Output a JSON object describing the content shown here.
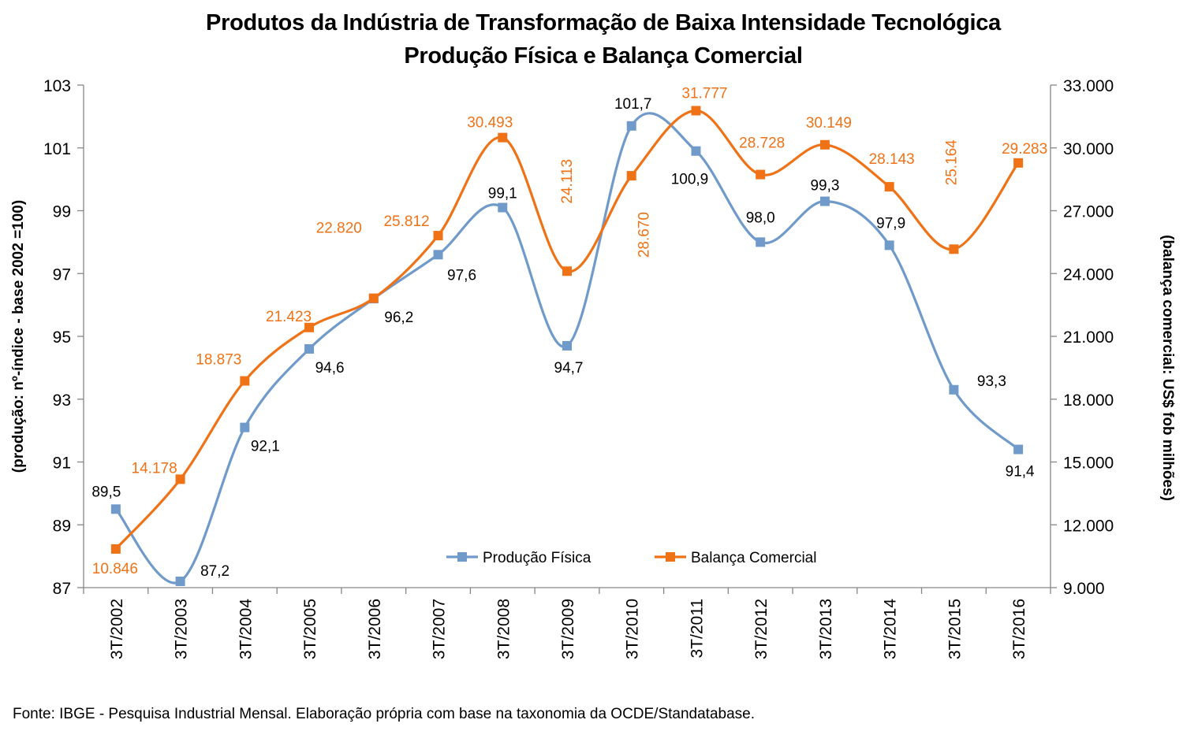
{
  "chart_data": {
    "type": "line",
    "title": "Produtos da Indústria de Transformação de Baixa Intensidade Tecnológica",
    "subtitle": "Produção Física e Balança Comercial",
    "categories": [
      "3T/2002",
      "3T/2003",
      "3T/2004",
      "3T/2005",
      "3T/2006",
      "3T/2007",
      "3T/2008",
      "3T/2009",
      "3T/2010",
      "3T/2011",
      "3T/2012",
      "3T/2013",
      "3T/2014",
      "3T/2015",
      "3T/2016"
    ],
    "ylabel_left": "(produção: nº-índice - base 2002 =100)",
    "ylabel_right": "(balança comercial: US$ fob milhões)",
    "ylim_left": [
      87,
      103
    ],
    "yticks_left": [
      "87",
      "89",
      "91",
      "93",
      "95",
      "97",
      "99",
      "101",
      "103"
    ],
    "ylim_right": [
      9000,
      33000
    ],
    "yticks_right": [
      "9.000",
      "12.000",
      "15.000",
      "18.000",
      "21.000",
      "24.000",
      "27.000",
      "30.000",
      "33.000"
    ],
    "series": [
      {
        "name": "Produção Física",
        "axis": "left",
        "color": "#6F9AC9",
        "values": [
          89.5,
          87.2,
          92.1,
          94.6,
          96.2,
          97.6,
          99.1,
          94.7,
          101.7,
          100.9,
          98.0,
          99.3,
          97.9,
          93.3,
          91.4
        ],
        "labels": [
          "89,5",
          "87,2",
          "92,1",
          "94,6",
          "96,2",
          "97,6",
          "99,1",
          "94,7",
          "101,7",
          "100,9",
          "98,0",
          "99,3",
          "97,9",
          "93,3",
          "91,4"
        ]
      },
      {
        "name": "Balança Comercial",
        "axis": "right",
        "color": "#F07216",
        "values": [
          10846,
          14178,
          18873,
          21423,
          22820,
          25812,
          30493,
          24113,
          28670,
          31777,
          28728,
          30149,
          28143,
          25164,
          29283
        ],
        "labels": [
          "10.846",
          "14.178",
          "18.873",
          "21.423",
          "22.820",
          "25.812",
          "30.493",
          "24.113",
          "28.670",
          "31.777",
          "28.728",
          "30.149",
          "28.143",
          "25.164",
          "29.283"
        ]
      }
    ],
    "legend_position": "bottom-center",
    "grid": false
  },
  "source": "Fonte:  IBGE - Pesquisa Industrial Mensal. Elaboração própria com base na taxonomia da OCDE/Standatabase."
}
